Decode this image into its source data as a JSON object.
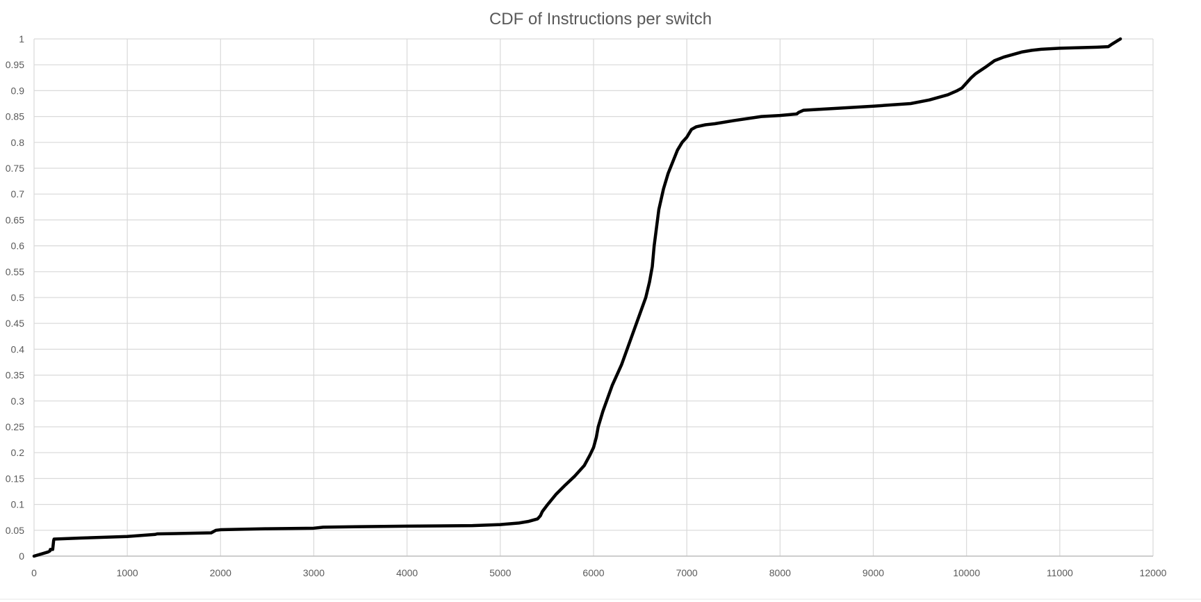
{
  "chart_data": {
    "type": "line",
    "title": "CDF of Instructions per switch",
    "xlabel": "",
    "ylabel": "",
    "xlim": [
      0,
      12000
    ],
    "ylim": [
      0,
      1
    ],
    "x_ticks": [
      "0",
      "1000",
      "2000",
      "3000",
      "4000",
      "5000",
      "6000",
      "7000",
      "8000",
      "9000",
      "10000",
      "11000",
      "12000"
    ],
    "y_ticks": [
      "0",
      "0.05",
      "0.1",
      "0.15",
      "0.2",
      "0.25",
      "0.3",
      "0.35",
      "0.4",
      "0.45",
      "0.5",
      "0.55",
      "0.6",
      "0.65",
      "0.7",
      "0.75",
      "0.8",
      "0.85",
      "0.9",
      "0.95",
      "1"
    ],
    "grid": true,
    "legend": "none",
    "series": [
      {
        "color": "#000000",
        "x": [
          0,
          150,
          170,
          175,
          200,
          210,
          215,
          500,
          1000,
          1300,
          1320,
          1900,
          1950,
          2000,
          2500,
          3000,
          3100,
          3500,
          4000,
          4700,
          5000,
          5200,
          5300,
          5400,
          5430,
          5450,
          5500,
          5600,
          5700,
          5800,
          5900,
          5960,
          6000,
          6030,
          6050,
          6100,
          6200,
          6300,
          6400,
          6500,
          6560,
          6600,
          6630,
          6650,
          6700,
          6750,
          6800,
          6900,
          6950,
          7000,
          7050,
          7100,
          7200,
          7300,
          7500,
          7800,
          8000,
          8180,
          8200,
          8250,
          9000,
          9400,
          9600,
          9800,
          9900,
          9950,
          10000,
          10050,
          10100,
          10200,
          10300,
          10400,
          10500,
          10600,
          10700,
          10800,
          11000,
          11200,
          11400,
          11520,
          11560,
          11650
        ],
        "y": [
          0,
          0.008,
          0.01,
          0.013,
          0.013,
          0.03,
          0.033,
          0.035,
          0.038,
          0.042,
          0.043,
          0.045,
          0.05,
          0.051,
          0.053,
          0.054,
          0.056,
          0.057,
          0.058,
          0.059,
          0.061,
          0.064,
          0.067,
          0.072,
          0.078,
          0.086,
          0.098,
          0.12,
          0.138,
          0.155,
          0.175,
          0.195,
          0.21,
          0.23,
          0.25,
          0.28,
          0.33,
          0.37,
          0.42,
          0.47,
          0.5,
          0.53,
          0.56,
          0.6,
          0.67,
          0.71,
          0.74,
          0.785,
          0.8,
          0.81,
          0.825,
          0.83,
          0.834,
          0.836,
          0.842,
          0.85,
          0.852,
          0.855,
          0.858,
          0.862,
          0.87,
          0.875,
          0.882,
          0.892,
          0.9,
          0.905,
          0.915,
          0.925,
          0.933,
          0.945,
          0.958,
          0.965,
          0.97,
          0.975,
          0.978,
          0.98,
          0.982,
          0.983,
          0.984,
          0.985,
          0.99,
          1
        ]
      }
    ]
  }
}
